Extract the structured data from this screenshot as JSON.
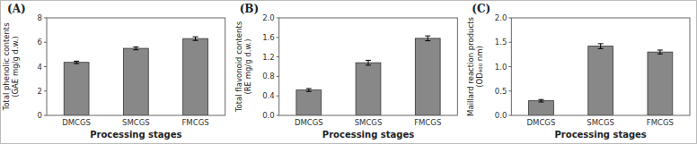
{
  "chart_data": [
    {
      "type": "bar",
      "title": "(A)",
      "categories": [
        "DMCGS",
        "SMCGS",
        "FMCGS"
      ],
      "values": [
        4.35,
        5.5,
        6.3
      ],
      "errors": [
        0.1,
        0.12,
        0.15
      ],
      "ylabel": "Total phenolic contents\n(GAE mg/g d.w.)",
      "xlabel": "Processing stages",
      "color": "#888888",
      "ylim": [
        0,
        8.0
      ],
      "yticks": [
        0,
        2,
        4,
        6,
        8
      ]
    },
    {
      "type": "bar",
      "title": "(B)",
      "categories": [
        "DMCGS",
        "SMCGS",
        "FMCGS"
      ],
      "values": [
        0.52,
        1.08,
        1.58
      ],
      "errors": [
        0.03,
        0.05,
        0.05
      ],
      "ylabel": "Total flavonoid contents\n(RE mg/g d.w.)",
      "xlabel": "Processing stages",
      "color": "#888888",
      "ylim": [
        0,
        2.0
      ],
      "yticks": [
        {
          "value": 0,
          "label": "0.0"
        },
        0.4,
        0.8,
        1.2,
        1.6,
        {
          "value": 2.0,
          "label": "2.0"
        }
      ]
    },
    {
      "type": "bar",
      "title": "(C)",
      "categories": [
        "DMCGS",
        "SMCGS",
        "FMCGS"
      ],
      "values": [
        0.3,
        1.42,
        1.3
      ],
      "errors": [
        0.025,
        0.05,
        0.04
      ],
      "ylabel": "Maillard reaction products\n(OD₄₀₀ nm)",
      "xlabel": "Processing stages",
      "color": "#888888",
      "ylim": [
        0,
        2.0
      ],
      "yticks": [
        {
          "value": 0,
          "label": "0.0"
        },
        0.5,
        {
          "value": 1.0,
          "label": "1.0"
        },
        1.5,
        {
          "value": 2.0,
          "label": "2.0"
        }
      ]
    }
  ]
}
